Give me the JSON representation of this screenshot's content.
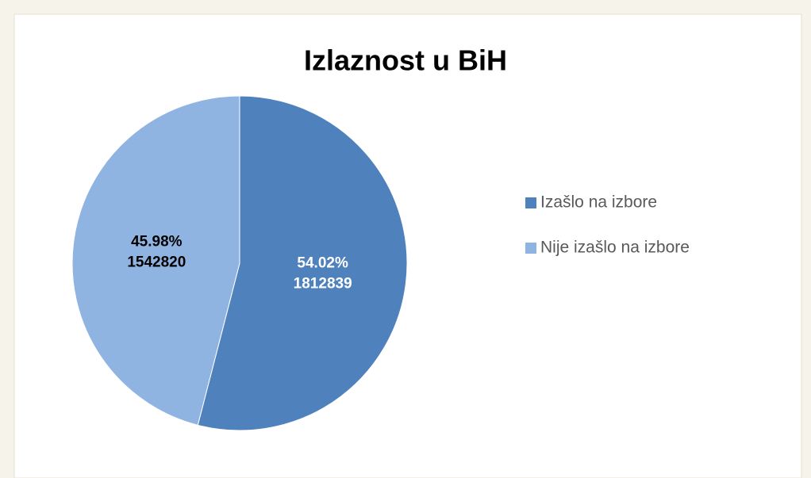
{
  "chart_data": {
    "type": "pie",
    "title": "Izlaznost u BiH",
    "categories": [
      "Izašlo na izbore",
      "Nije izašlo na izbore"
    ],
    "values": [
      54.02,
      45.98
    ],
    "value_labels": [
      "54.02%",
      "45.98%"
    ],
    "counts": [
      1812839,
      1542820
    ],
    "colors": [
      "#4f81bd",
      "#8fb4e2"
    ],
    "legend": "right"
  }
}
